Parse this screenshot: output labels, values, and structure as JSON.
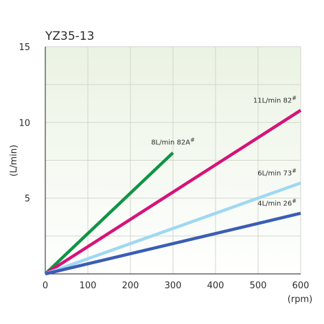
{
  "chart_data": {
    "type": "line",
    "title": "YZ35-13",
    "xlabel": "(rpm)",
    "ylabel": "(L/min)",
    "xlim": [
      0,
      600
    ],
    "ylim": [
      0,
      15
    ],
    "x_ticks": [
      0,
      100,
      200,
      300,
      400,
      500,
      600
    ],
    "y_ticks": [
      5,
      10,
      15
    ],
    "grid": true,
    "series": [
      {
        "name": "8L/min 82A",
        "superscript": "#",
        "color": "#0f9444",
        "x": [
          0,
          300
        ],
        "y": [
          0,
          8
        ]
      },
      {
        "name": "11L/min 82",
        "superscript": "#",
        "color": "#d6137a",
        "x": [
          0,
          600
        ],
        "y": [
          0,
          10.8
        ]
      },
      {
        "name": "6L/min 73",
        "superscript": "#",
        "color": "#9fd8f2",
        "x": [
          0,
          600
        ],
        "y": [
          0,
          6
        ]
      },
      {
        "name": "4L/min 26",
        "superscript": "#",
        "color": "#3a5db5",
        "x": [
          0,
          600
        ],
        "y": [
          0,
          4
        ]
      }
    ]
  }
}
